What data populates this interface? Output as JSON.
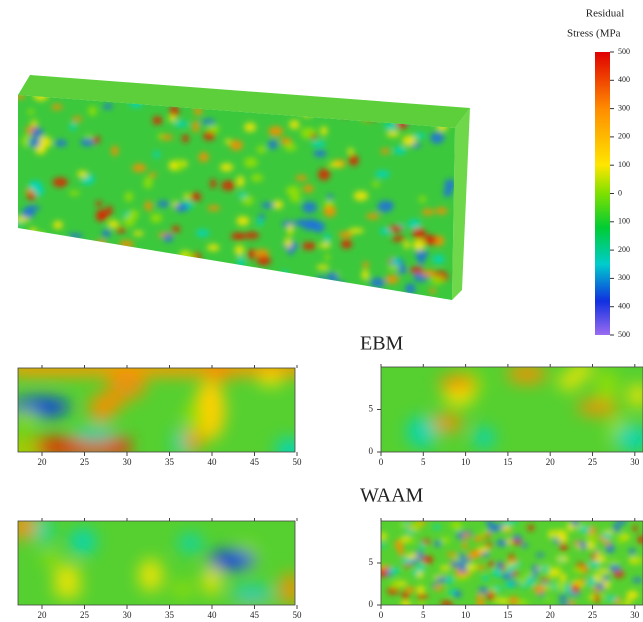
{
  "colorbar": {
    "title": [
      "Residual",
      "Stress (MPa"
    ],
    "ticks": [
      500,
      400,
      300,
      200,
      100,
      0,
      100,
      200,
      300,
      400,
      500
    ]
  },
  "panels": [
    {
      "xticks": [
        20,
        25,
        30,
        35,
        40,
        45,
        50
      ]
    },
    {
      "xticks": [
        20,
        25,
        30,
        35,
        40,
        45,
        50
      ]
    },
    {
      "title": "EBM",
      "xticks": [
        0,
        5,
        10,
        15,
        20,
        25,
        30
      ],
      "yticks": [
        0,
        5
      ]
    },
    {
      "title": "WAAM",
      "xticks": [
        0,
        5,
        10,
        15,
        20,
        25,
        30
      ],
      "yticks": [
        0,
        5
      ]
    }
  ]
}
